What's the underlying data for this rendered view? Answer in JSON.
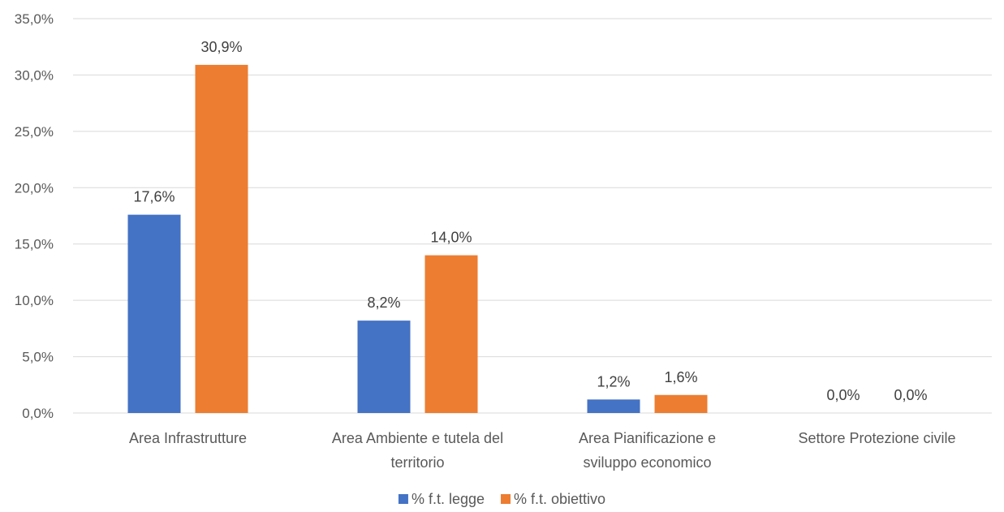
{
  "chart_data": {
    "type": "bar",
    "categories": [
      [
        "Area Infrastrutture"
      ],
      [
        "Area Ambiente e tutela del",
        "territorio"
      ],
      [
        "Area Pianificazione e",
        "sviluppo economico"
      ],
      [
        "Settore Protezione civile"
      ]
    ],
    "series": [
      {
        "name": "%  f.t. legge",
        "values": [
          17.6,
          8.2,
          1.2,
          0.0
        ],
        "labels": [
          "17,6%",
          "8,2%",
          "1,2%",
          "0,0%"
        ],
        "color": "#4472C4"
      },
      {
        "name": "% f.t. obiettivo",
        "values": [
          30.9,
          14.0,
          1.6,
          0.0
        ],
        "labels": [
          "30,9%",
          "14,0%",
          "1,6%",
          "0,0%"
        ],
        "color": "#ED7D31"
      }
    ],
    "yticks": [
      "0,0%",
      "5,0%",
      "10,0%",
      "15,0%",
      "20,0%",
      "25,0%",
      "30,0%",
      "35,0%"
    ],
    "ylim": [
      0,
      35
    ],
    "grid": true,
    "legend_position": "bottom"
  }
}
